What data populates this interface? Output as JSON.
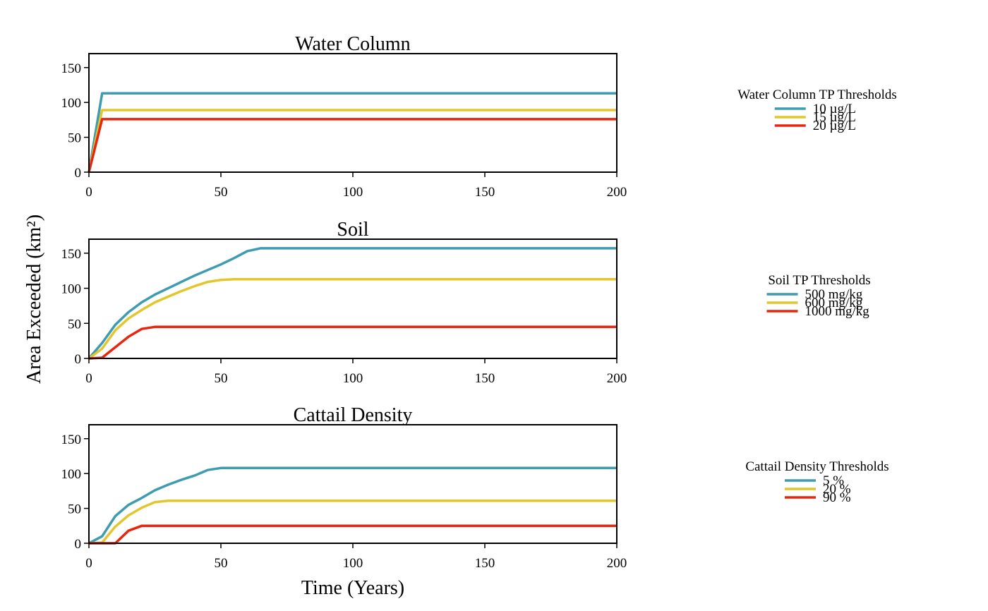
{
  "figure": {
    "ylabel": "Area Exceeded (km²)",
    "xlabel": "Time (Years)"
  },
  "chart_data": [
    {
      "type": "line",
      "title": "Water Column",
      "xlim": [
        0,
        200
      ],
      "ylim": [
        0,
        170
      ],
      "xticks": [
        0,
        50,
        100,
        150,
        200
      ],
      "yticks": [
        0,
        50,
        100,
        150
      ],
      "grid": false,
      "legend_position": "right",
      "legend_title": "Water Column TP Thresholds",
      "series": [
        {
          "name": "10 µg/L",
          "color": "#3E9BB0",
          "x": [
            0,
            5,
            200
          ],
          "y": [
            0,
            113,
            113
          ]
        },
        {
          "name": "15 µg/L",
          "color": "#E3C62E",
          "x": [
            0,
            5,
            200
          ],
          "y": [
            0,
            89,
            89
          ]
        },
        {
          "name": "20 µg/L",
          "color": "#E8260E",
          "x": [
            0,
            5,
            200
          ],
          "y": [
            0,
            76,
            76
          ]
        }
      ]
    },
    {
      "type": "line",
      "title": "Soil",
      "xlim": [
        0,
        200
      ],
      "ylim": [
        0,
        170
      ],
      "xticks": [
        0,
        50,
        100,
        150,
        200
      ],
      "yticks": [
        0,
        50,
        100,
        150
      ],
      "grid": false,
      "legend_position": "right",
      "legend_title": "Soil TP Thresholds",
      "series": [
        {
          "name": "500 mg/kg",
          "color": "#3E9BB0",
          "x": [
            0,
            5,
            10,
            15,
            20,
            25,
            30,
            35,
            40,
            45,
            50,
            55,
            60,
            65,
            200
          ],
          "y": [
            0,
            22,
            48,
            66,
            80,
            91,
            100,
            109,
            118,
            126,
            134,
            143,
            153,
            157,
            157
          ]
        },
        {
          "name": "600 mg/kg",
          "color": "#E3C62E",
          "x": [
            0,
            5,
            10,
            15,
            20,
            25,
            30,
            35,
            40,
            45,
            50,
            55,
            200
          ],
          "y": [
            0,
            14,
            40,
            57,
            69,
            80,
            88,
            96,
            103,
            109,
            112,
            113,
            113
          ]
        },
        {
          "name": "1000 mg/kg",
          "color": "#E8260E",
          "x": [
            0,
            5,
            10,
            15,
            20,
            25,
            200
          ],
          "y": [
            0,
            1,
            16,
            31,
            42,
            45,
            45
          ]
        }
      ]
    },
    {
      "type": "line",
      "title": "Cattail Density",
      "xlim": [
        0,
        200
      ],
      "ylim": [
        0,
        170
      ],
      "xticks": [
        0,
        50,
        100,
        150,
        200
      ],
      "yticks": [
        0,
        50,
        100,
        150
      ],
      "grid": false,
      "legend_position": "right",
      "legend_title": "Cattail Density Thresholds",
      "series": [
        {
          "name": "5 %",
          "color": "#3E9BB0",
          "x": [
            0,
            5,
            10,
            15,
            20,
            25,
            30,
            35,
            40,
            45,
            50,
            200
          ],
          "y": [
            0,
            10,
            39,
            55,
            65,
            76,
            84,
            91,
            97,
            105,
            108,
            108
          ]
        },
        {
          "name": "20 %",
          "color": "#E3C62E",
          "x": [
            0,
            5,
            10,
            15,
            20,
            25,
            30,
            200
          ],
          "y": [
            0,
            1,
            24,
            40,
            51,
            59,
            61,
            61
          ]
        },
        {
          "name": "90 %",
          "color": "#E8260E",
          "x": [
            0,
            10,
            15,
            20,
            200
          ],
          "y": [
            0,
            0,
            18,
            25,
            25
          ]
        }
      ]
    }
  ]
}
